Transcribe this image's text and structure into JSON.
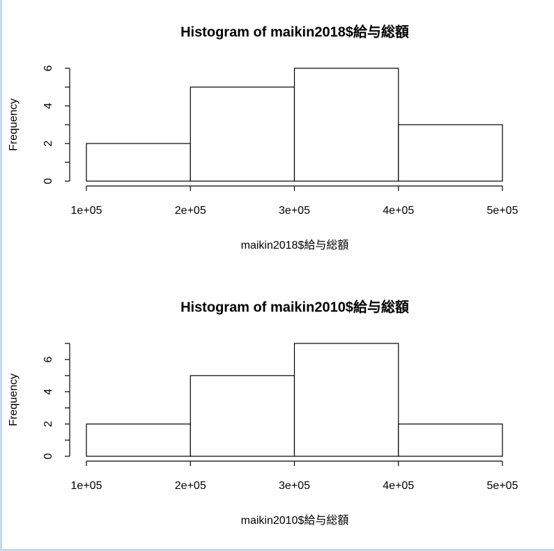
{
  "chart_data": [
    {
      "type": "histogram",
      "title": "Histogram of maikin2018$給与総額",
      "xlabel": "maikin2018$給与総額",
      "ylabel": "Frequency",
      "bins": [
        100000,
        200000,
        300000,
        400000,
        500000
      ],
      "values": [
        2,
        5,
        6,
        3
      ],
      "color": "#ffffff",
      "xlim": [
        100000,
        500000
      ],
      "xticks": [
        {
          "value": 100000,
          "label": "1e+05"
        },
        {
          "value": 200000,
          "label": "2e+05"
        },
        {
          "value": 300000,
          "label": "3e+05"
        },
        {
          "value": 400000,
          "label": "4e+05"
        },
        {
          "value": 500000,
          "label": "5e+05"
        }
      ],
      "ylim": [
        0,
        6
      ],
      "yticks": [
        0,
        2,
        4,
        6
      ],
      "yminorticks": [
        1,
        3,
        5
      ]
    },
    {
      "type": "histogram",
      "title": "Histogram of maikin2010$給与総額",
      "xlabel": "maikin2010$給与総額",
      "ylabel": "Frequency",
      "bins": [
        100000,
        200000,
        300000,
        400000,
        500000
      ],
      "values": [
        2,
        5,
        7,
        2
      ],
      "color": "#ffffff",
      "xlim": [
        100000,
        500000
      ],
      "xticks": [
        {
          "value": 100000,
          "label": "1e+05"
        },
        {
          "value": 200000,
          "label": "2e+05"
        },
        {
          "value": 300000,
          "label": "3e+05"
        },
        {
          "value": 400000,
          "label": "4e+05"
        },
        {
          "value": 500000,
          "label": "5e+05"
        }
      ],
      "ylim": [
        0,
        7
      ],
      "yticks": [
        0,
        2,
        4,
        6
      ],
      "yminorticks": [
        1,
        3,
        5,
        7
      ]
    }
  ]
}
